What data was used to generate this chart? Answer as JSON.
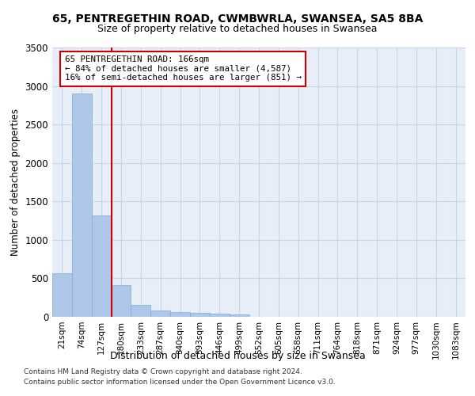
{
  "title1": "65, PENTREGETHIN ROAD, CWMBWRLA, SWANSEA, SA5 8BA",
  "title2": "Size of property relative to detached houses in Swansea",
  "xlabel": "Distribution of detached houses by size in Swansea",
  "ylabel": "Number of detached properties",
  "footnote1": "Contains HM Land Registry data © Crown copyright and database right 2024.",
  "footnote2": "Contains public sector information licensed under the Open Government Licence v3.0.",
  "bin_labels": [
    "21sqm",
    "74sqm",
    "127sqm",
    "180sqm",
    "233sqm",
    "287sqm",
    "340sqm",
    "393sqm",
    "446sqm",
    "499sqm",
    "552sqm",
    "605sqm",
    "658sqm",
    "711sqm",
    "764sqm",
    "818sqm",
    "871sqm",
    "924sqm",
    "977sqm",
    "1030sqm",
    "1083sqm"
  ],
  "bar_values": [
    565,
    2900,
    1320,
    415,
    155,
    80,
    60,
    55,
    45,
    30,
    0,
    0,
    0,
    0,
    0,
    0,
    0,
    0,
    0,
    0,
    0
  ],
  "bar_color": "#aec6e8",
  "bar_edge_color": "#7aafd4",
  "grid_color": "#c8d4e8",
  "background_color": "#e8eef8",
  "vline_color": "#cc0000",
  "vline_pos": 2.5,
  "annotation_text": "65 PENTREGETHIN ROAD: 166sqm\n← 84% of detached houses are smaller (4,587)\n16% of semi-detached houses are larger (851) →",
  "annotation_box_color": "#cc0000",
  "ylim": [
    0,
    3500
  ],
  "yticks": [
    0,
    500,
    1000,
    1500,
    2000,
    2500,
    3000,
    3500
  ]
}
